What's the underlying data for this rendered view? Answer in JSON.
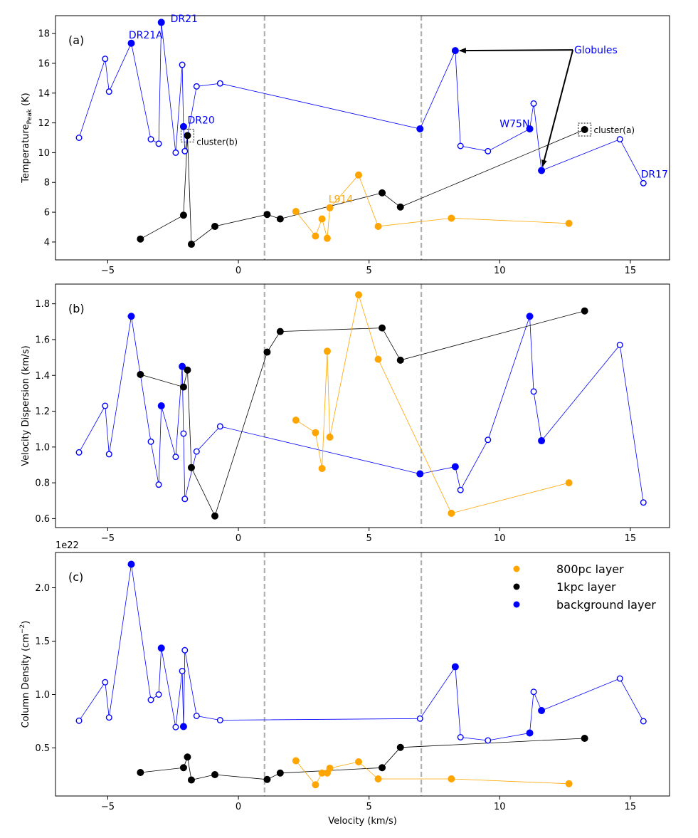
{
  "chart_data": [
    {
      "type": "scatter",
      "panel_label": "(a)",
      "ylabel": "Temperature",
      "ylabel_sub": "Peak",
      "ylabel_unit": " (K)",
      "xlim": [
        -7,
        16.5
      ],
      "ylim": [
        2.8,
        19.2
      ],
      "yticks": [
        4,
        6,
        8,
        10,
        12,
        14,
        16,
        18
      ],
      "xticks": [
        -5,
        0,
        5,
        10,
        15
      ],
      "vlines": [
        1,
        7
      ],
      "series": [
        {
          "name": "background layer",
          "color": "#0000ff",
          "x": [
            -6.1,
            -5.1,
            -4.95,
            -4.1,
            -3.35,
            -3.05,
            -2.95,
            -2.4,
            -2.15,
            -2.1,
            -2.05,
            -1.6,
            -0.7,
            6.95,
            8.3,
            8.5,
            9.55,
            11.15,
            11.3,
            11.6,
            14.6,
            15.5
          ],
          "y": [
            11.0,
            16.3,
            14.1,
            17.35,
            10.9,
            10.6,
            18.75,
            10.0,
            15.9,
            11.75,
            10.1,
            14.45,
            14.65,
            11.6,
            16.85,
            10.45,
            10.1,
            11.6,
            13.3,
            8.8,
            10.9,
            7.95
          ],
          "filled": [
            false,
            false,
            false,
            true,
            false,
            false,
            true,
            false,
            false,
            true,
            false,
            false,
            false,
            true,
            true,
            false,
            false,
            true,
            false,
            true,
            false,
            false
          ]
        },
        {
          "name": "1kpc layer",
          "color": "#000000",
          "x": [
            -3.75,
            -2.1,
            -1.95,
            -1.8,
            -0.9,
            1.1,
            1.6,
            5.5,
            6.2,
            13.25
          ],
          "y": [
            4.2,
            5.8,
            11.15,
            3.85,
            5.05,
            5.85,
            5.55,
            7.3,
            6.35,
            11.55
          ],
          "filled": [
            true,
            true,
            true,
            true,
            true,
            true,
            true,
            true,
            true,
            true
          ]
        },
        {
          "name": "800pc layer",
          "color": "#ffa500",
          "x": [
            2.2,
            2.95,
            3.2,
            3.4,
            3.5,
            4.6,
            5.35,
            8.15,
            12.65
          ],
          "y": [
            6.05,
            4.4,
            5.55,
            4.25,
            6.3,
            8.5,
            5.05,
            5.6,
            5.25
          ],
          "filled": [
            true,
            true,
            true,
            true,
            true,
            true,
            true,
            true,
            true
          ]
        }
      ],
      "annotations": [
        {
          "text": "DR21",
          "x": -2.6,
          "y": 19.0,
          "color": "#0000ff"
        },
        {
          "text": "DR21A",
          "x": -4.2,
          "y": 17.9,
          "color": "#0000ff"
        },
        {
          "text": "DR20",
          "x": -1.95,
          "y": 12.2,
          "color": "#0000ff"
        },
        {
          "text": "cluster(b)",
          "x": -1.6,
          "y": 10.75,
          "color": "#000000"
        },
        {
          "text": "L914",
          "x": 3.45,
          "y": 6.9,
          "color": "#ffa500"
        },
        {
          "text": "W75N",
          "x": 10.0,
          "y": 11.95,
          "color": "#0000ff"
        },
        {
          "text": "Globules",
          "x": 12.85,
          "y": 16.9,
          "color": "#0000ff"
        },
        {
          "text": "cluster(a)",
          "x": 13.6,
          "y": 11.55,
          "color": "#000000"
        },
        {
          "text": "DR17",
          "x": 15.4,
          "y": 8.55,
          "color": "#0000ff"
        }
      ]
    },
    {
      "type": "scatter",
      "panel_label": "(b)",
      "ylabel": "Velocity Dispersion (km/s)",
      "xlim": [
        -7,
        16.5
      ],
      "ylim": [
        0.55,
        1.91
      ],
      "yticks": [
        0.6,
        0.8,
        1.0,
        1.2,
        1.4,
        1.6,
        1.8
      ],
      "xticks": [
        -5,
        0,
        5,
        10,
        15
      ],
      "vlines": [
        1,
        7
      ],
      "series": [
        {
          "name": "background layer",
          "color": "#0000ff",
          "x": [
            -6.1,
            -5.1,
            -4.95,
            -4.1,
            -3.35,
            -3.05,
            -2.95,
            -2.4,
            -2.15,
            -2.1,
            -2.05,
            -1.6,
            -0.7,
            6.95,
            8.3,
            8.5,
            9.55,
            11.15,
            11.3,
            11.6,
            14.6,
            15.5
          ],
          "y": [
            0.97,
            1.23,
            0.96,
            1.73,
            1.03,
            0.79,
            1.23,
            0.945,
            1.45,
            1.075,
            0.71,
            0.975,
            1.115,
            0.85,
            0.89,
            0.76,
            1.04,
            1.73,
            1.31,
            1.035,
            1.57,
            0.69
          ],
          "filled": [
            false,
            false,
            false,
            true,
            false,
            false,
            true,
            false,
            true,
            false,
            false,
            false,
            false,
            true,
            true,
            false,
            false,
            true,
            false,
            true,
            false,
            false
          ]
        },
        {
          "name": "1kpc layer",
          "color": "#000000",
          "x": [
            -3.75,
            -2.1,
            -1.95,
            -1.8,
            -0.9,
            1.1,
            1.6,
            5.5,
            6.2,
            13.25
          ],
          "y": [
            1.405,
            1.335,
            1.43,
            0.885,
            0.615,
            1.53,
            1.645,
            1.665,
            1.485,
            1.76
          ],
          "filled": [
            true,
            true,
            true,
            true,
            true,
            true,
            true,
            true,
            true,
            true
          ]
        },
        {
          "name": "800pc layer",
          "color": "#ffa500",
          "x": [
            2.2,
            2.95,
            3.2,
            3.4,
            3.5,
            4.6,
            5.35,
            8.15,
            12.65
          ],
          "y": [
            1.15,
            1.08,
            0.88,
            1.535,
            1.055,
            1.85,
            1.49,
            0.63,
            0.8
          ],
          "filled": [
            true,
            true,
            true,
            true,
            true,
            true,
            true,
            true,
            true
          ]
        }
      ]
    },
    {
      "type": "scatter",
      "panel_label": "(c)",
      "ylabel": "Column Density (cm",
      "ylabel_sup": "−2",
      "ylabel_unit": ")",
      "scale_label": "1e22",
      "xlabel": "Velocity (km/s)",
      "xlim": [
        -7,
        16.5
      ],
      "ylim": [
        0.05,
        2.33
      ],
      "yticks": [
        0.5,
        1.0,
        1.5,
        2.0
      ],
      "yticklabels": [
        "0.5",
        "1.0",
        "1.5",
        "2.0"
      ],
      "xticks": [
        -5,
        0,
        5,
        10,
        15
      ],
      "vlines": [
        1,
        7
      ],
      "series": [
        {
          "name": "background layer",
          "color": "#0000ff",
          "x": [
            -6.1,
            -5.1,
            -4.95,
            -4.1,
            -3.35,
            -3.05,
            -2.95,
            -2.4,
            -2.15,
            -2.1,
            -2.05,
            -1.6,
            -0.7,
            6.95,
            8.3,
            8.5,
            9.55,
            11.15,
            11.3,
            11.6,
            14.6,
            15.5
          ],
          "y": [
            0.755,
            1.115,
            0.785,
            2.22,
            0.95,
            1.0,
            1.435,
            0.695,
            1.22,
            0.7,
            1.415,
            0.8,
            0.76,
            0.775,
            1.26,
            0.6,
            0.57,
            0.64,
            1.025,
            0.85,
            1.15,
            0.75
          ],
          "filled": [
            false,
            false,
            false,
            true,
            false,
            false,
            true,
            false,
            false,
            true,
            false,
            false,
            false,
            false,
            true,
            false,
            false,
            true,
            false,
            true,
            false,
            false
          ]
        },
        {
          "name": "1kpc layer",
          "color": "#000000",
          "x": [
            -3.75,
            -2.1,
            -1.95,
            -1.8,
            -0.9,
            1.1,
            1.6,
            5.5,
            6.2,
            13.25
          ],
          "y": [
            0.27,
            0.315,
            0.415,
            0.2,
            0.25,
            0.205,
            0.265,
            0.315,
            0.505,
            0.59
          ],
          "filled": [
            true,
            true,
            true,
            true,
            true,
            true,
            true,
            true,
            true,
            true
          ]
        },
        {
          "name": "800pc layer",
          "color": "#ffa500",
          "x": [
            2.2,
            2.95,
            3.2,
            3.4,
            3.5,
            4.6,
            5.35,
            8.15,
            12.65
          ],
          "y": [
            0.38,
            0.155,
            0.265,
            0.265,
            0.31,
            0.37,
            0.21,
            0.21,
            0.165
          ],
          "filled": [
            true,
            true,
            true,
            true,
            true,
            true,
            true,
            true,
            true
          ]
        }
      ],
      "legend": {
        "position": "top-right",
        "entries": [
          {
            "label": "800pc layer",
            "color": "#ffa500"
          },
          {
            "label": "1kpc layer",
            "color": "#000000"
          },
          {
            "label": "background layer",
            "color": "#0000ff"
          }
        ]
      }
    }
  ]
}
